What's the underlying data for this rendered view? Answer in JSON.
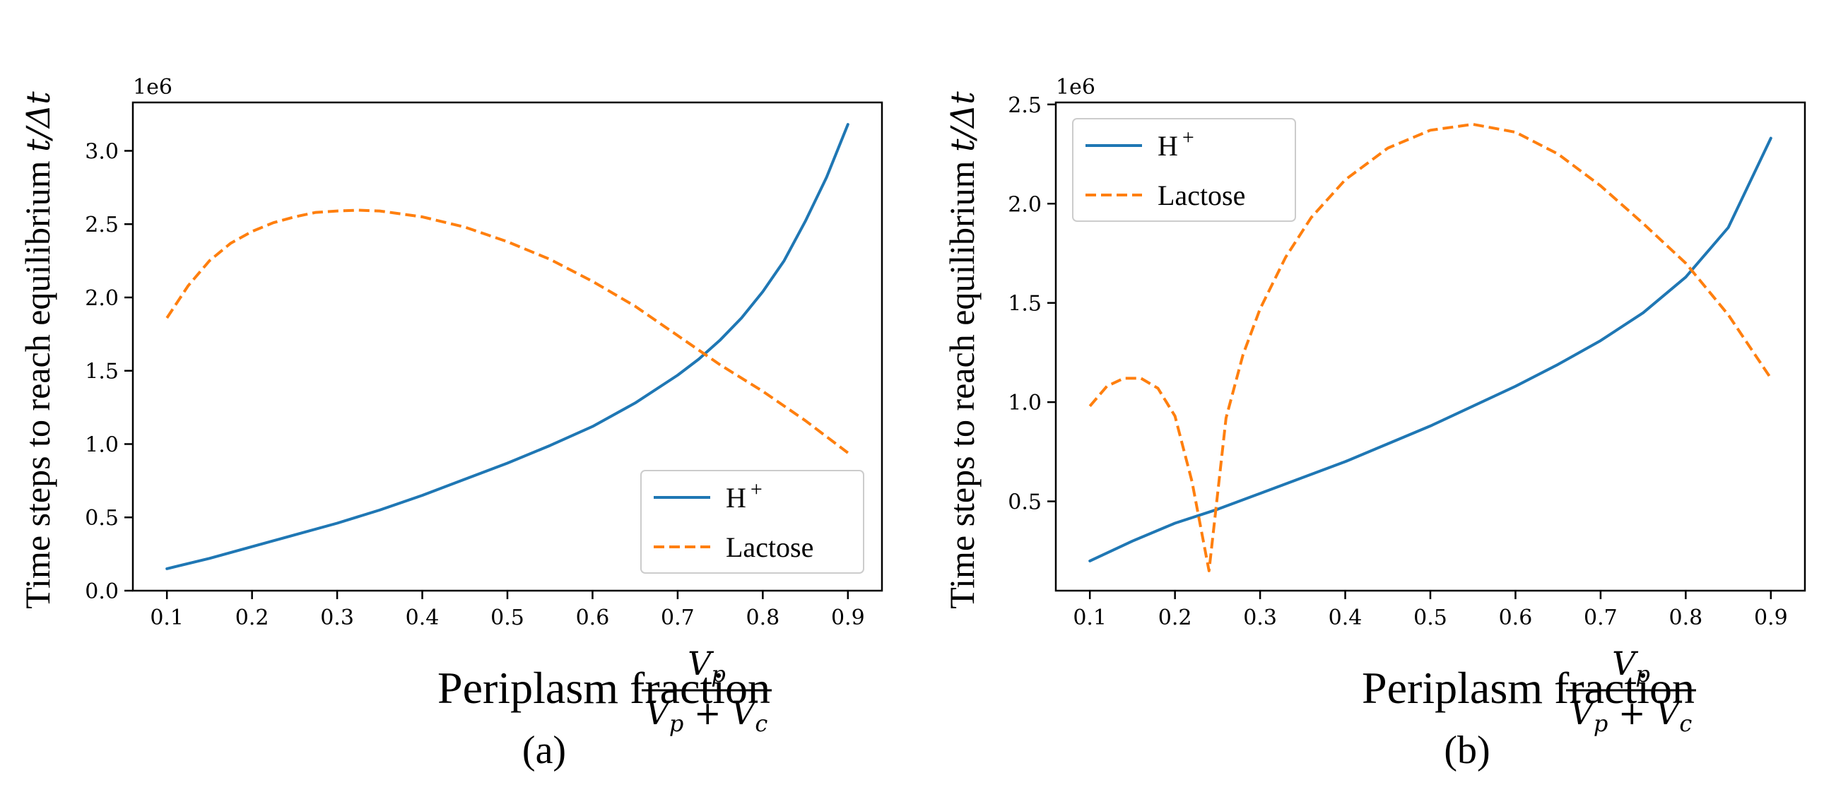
{
  "chart_data": [
    {
      "type": "line",
      "panel_label": "(a)",
      "offset_text": "1e6",
      "ylabel_text": "Time steps to reach equilibrium ",
      "ylabel_math": "t/Δt",
      "xlabel_text": "Periplasm fraction",
      "xlabel_math_num": "V",
      "xlabel_math_num_sub": "p",
      "xlabel_math_den": "V",
      "xlabel_math_den_sub1": "p",
      "xlabel_math_den_plus": " + ",
      "xlabel_math_den_sub2": "c",
      "xlim": [
        0.06,
        0.94
      ],
      "ylim": [
        0.0,
        3.33
      ],
      "xticks": [
        0.1,
        0.2,
        0.3,
        0.4,
        0.5,
        0.6,
        0.7,
        0.8,
        0.9
      ],
      "xtick_labels": [
        "0.1",
        "0.2",
        "0.3",
        "0.4",
        "0.5",
        "0.6",
        "0.7",
        "0.8",
        "0.9"
      ],
      "yticks": [
        0.0,
        0.5,
        1.0,
        1.5,
        2.0,
        2.5,
        3.0
      ],
      "ytick_labels": [
        "0.0",
        "0.5",
        "1.0",
        "1.5",
        "2.0",
        "2.5",
        "3.0"
      ],
      "legend_position": "lower-right",
      "legend": [
        {
          "label": "H",
          "sup": "+"
        },
        {
          "label": "Lactose",
          "sup": ""
        }
      ],
      "series": [
        {
          "name": "H+",
          "color": "#1f77b4",
          "style": "solid",
          "x": [
            0.1,
            0.15,
            0.2,
            0.25,
            0.3,
            0.35,
            0.4,
            0.45,
            0.5,
            0.55,
            0.6,
            0.65,
            0.7,
            0.725,
            0.75,
            0.775,
            0.8,
            0.825,
            0.85,
            0.875,
            0.9
          ],
          "y": [
            0.15,
            0.22,
            0.3,
            0.38,
            0.46,
            0.55,
            0.65,
            0.76,
            0.87,
            0.99,
            1.12,
            1.28,
            1.47,
            1.58,
            1.71,
            1.86,
            2.04,
            2.25,
            2.52,
            2.82,
            3.18
          ]
        },
        {
          "name": "Lactose",
          "color": "#ff7f0e",
          "style": "dashed",
          "x": [
            0.1,
            0.125,
            0.15,
            0.175,
            0.2,
            0.225,
            0.25,
            0.275,
            0.3,
            0.325,
            0.35,
            0.4,
            0.45,
            0.5,
            0.55,
            0.6,
            0.65,
            0.7,
            0.75,
            0.8,
            0.85,
            0.9
          ],
          "y": [
            1.86,
            2.08,
            2.25,
            2.37,
            2.45,
            2.51,
            2.55,
            2.58,
            2.59,
            2.595,
            2.59,
            2.55,
            2.48,
            2.38,
            2.26,
            2.11,
            1.94,
            1.74,
            1.54,
            1.36,
            1.16,
            0.94
          ]
        }
      ]
    },
    {
      "type": "line",
      "panel_label": "(b)",
      "offset_text": "1e6",
      "ylabel_text": "Time steps to reach equilibrium ",
      "ylabel_math": "t/Δt",
      "xlabel_text": "Periplasm fraction",
      "xlabel_math_num": "V",
      "xlabel_math_num_sub": "p",
      "xlabel_math_den": "V",
      "xlabel_math_den_sub1": "p",
      "xlabel_math_den_plus": " + ",
      "xlabel_math_den_sub2": "c",
      "xlim": [
        0.06,
        0.94
      ],
      "ylim": [
        0.05,
        2.51
      ],
      "xticks": [
        0.1,
        0.2,
        0.3,
        0.4,
        0.5,
        0.6,
        0.7,
        0.8,
        0.9
      ],
      "xtick_labels": [
        "0.1",
        "0.2",
        "0.3",
        "0.4",
        "0.5",
        "0.6",
        "0.7",
        "0.8",
        "0.9"
      ],
      "yticks": [
        0.5,
        1.0,
        1.5,
        2.0,
        2.5
      ],
      "ytick_labels": [
        "0.5",
        "1.0",
        "1.5",
        "2.0",
        "2.5"
      ],
      "legend_position": "upper-left",
      "legend": [
        {
          "label": "H",
          "sup": "+"
        },
        {
          "label": "Lactose",
          "sup": ""
        }
      ],
      "series": [
        {
          "name": "H+",
          "color": "#1f77b4",
          "style": "solid",
          "x": [
            0.1,
            0.15,
            0.2,
            0.25,
            0.3,
            0.35,
            0.4,
            0.45,
            0.5,
            0.55,
            0.6,
            0.65,
            0.7,
            0.75,
            0.8,
            0.85,
            0.9
          ],
          "y": [
            0.2,
            0.3,
            0.39,
            0.46,
            0.54,
            0.62,
            0.7,
            0.79,
            0.88,
            0.98,
            1.08,
            1.19,
            1.31,
            1.45,
            1.63,
            1.88,
            2.33
          ]
        },
        {
          "name": "Lactose",
          "color": "#ff7f0e",
          "style": "dashed",
          "x": [
            0.1,
            0.12,
            0.14,
            0.16,
            0.18,
            0.2,
            0.22,
            0.24,
            0.26,
            0.28,
            0.3,
            0.33,
            0.36,
            0.4,
            0.45,
            0.5,
            0.55,
            0.6,
            0.65,
            0.7,
            0.75,
            0.8,
            0.85,
            0.9
          ],
          "y": [
            0.98,
            1.08,
            1.12,
            1.12,
            1.07,
            0.93,
            0.6,
            0.15,
            0.92,
            1.24,
            1.47,
            1.73,
            1.93,
            2.12,
            2.28,
            2.37,
            2.4,
            2.36,
            2.25,
            2.09,
            1.9,
            1.7,
            1.44,
            1.12
          ]
        }
      ]
    }
  ]
}
